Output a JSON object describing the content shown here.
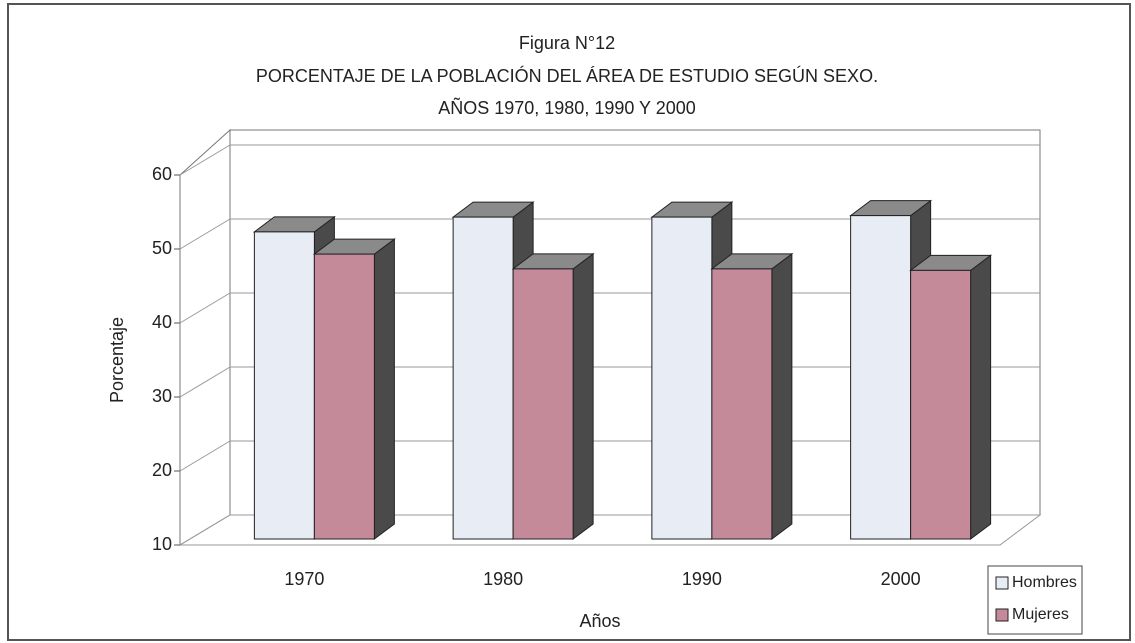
{
  "chart_data": {
    "type": "bar",
    "title": "Figura N°12",
    "subtitle": "PORCENTAJE DE LA POBLACIÓN DEL ÁREA DE ESTUDIO SEGÚN SEXO.",
    "subtitle2": "AÑOS 1970, 1980, 1990 Y 2000",
    "x_label": "Años",
    "y_label": "Porcentaje",
    "categories": [
      "1970",
      "1980",
      "1990",
      "2000"
    ],
    "series": [
      {
        "name": "Hombres",
        "color": "#e8edf5",
        "values": [
          51.5,
          53.5,
          53.5,
          53.7
        ]
      },
      {
        "name": "Mujeres",
        "color": "#c48a9a",
        "values": [
          48.5,
          46.5,
          46.5,
          46.3
        ]
      }
    ],
    "ylim": [
      10,
      60
    ],
    "yticks": [
      10,
      20,
      30,
      40,
      50,
      60
    ],
    "grid": true,
    "legend": "lower right"
  }
}
